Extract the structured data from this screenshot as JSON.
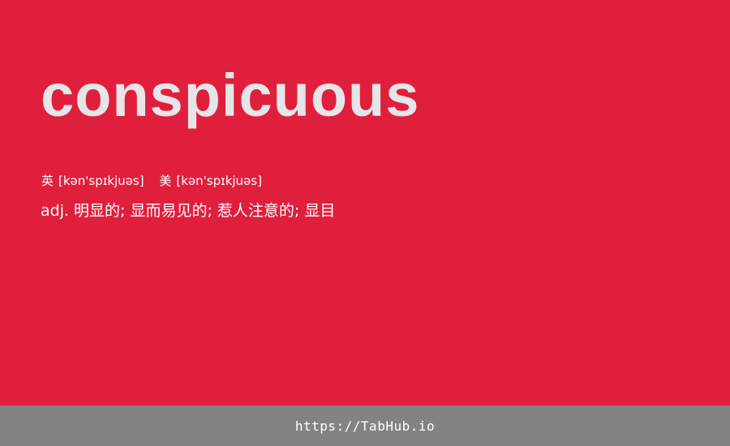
{
  "colors": {
    "background": "#e01f3d",
    "headword": "#e6e6e9",
    "text": "#ffffff",
    "footer_background": "#838383"
  },
  "entry": {
    "headword": "conspicuous",
    "phonetics": [
      {
        "lang": "英",
        "ipa": "[kən'spɪkjuəs]"
      },
      {
        "lang": "美",
        "ipa": "[kən'spɪkjuəs]"
      }
    ],
    "part_of_speech": "adj.",
    "definition": "明显的; 显而易见的; 惹人注意的; 显目"
  },
  "footer": {
    "url": "https://TabHub.io"
  }
}
